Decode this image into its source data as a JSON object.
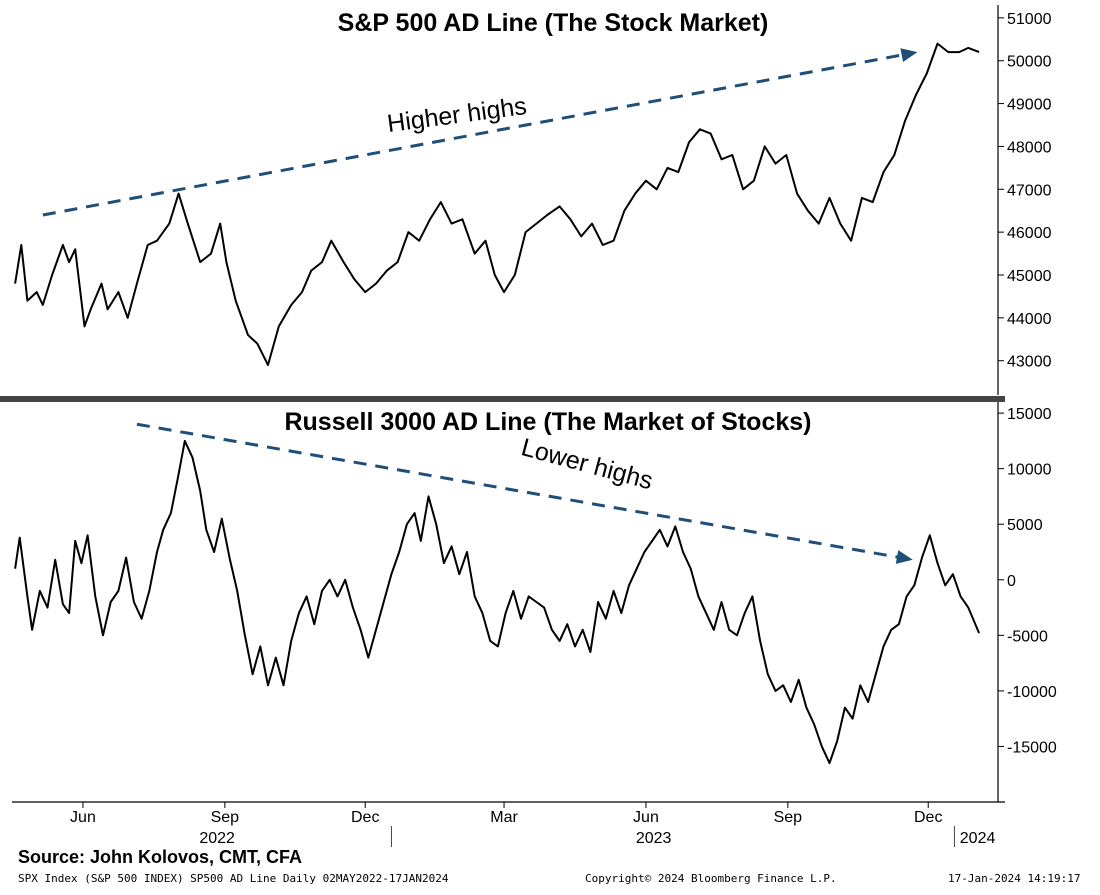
{
  "chart_data": [
    {
      "type": "line",
      "title": "S&P 500 AD Line (The Stock Market)",
      "ylim": [
        42200,
        51300
      ],
      "yticks": [
        43000,
        44000,
        45000,
        46000,
        47000,
        48000,
        49000,
        50000,
        51000
      ],
      "annotation": "Higher highs",
      "trendline": {
        "from": [
          "2022-05-20",
          46400
        ],
        "to": [
          "2023-12-08",
          50200
        ]
      },
      "series": [
        {
          "points": [
            [
              "2022-05-02",
              44800
            ],
            [
              "2022-05-06",
              45700
            ],
            [
              "2022-05-10",
              44400
            ],
            [
              "2022-05-16",
              44600
            ],
            [
              "2022-05-20",
              44300
            ],
            [
              "2022-05-26",
              45000
            ],
            [
              "2022-06-02",
              45700
            ],
            [
              "2022-06-06",
              45300
            ],
            [
              "2022-06-10",
              45600
            ],
            [
              "2022-06-16",
              43800
            ],
            [
              "2022-06-20",
              44200
            ],
            [
              "2022-06-27",
              44800
            ],
            [
              "2022-07-01",
              44200
            ],
            [
              "2022-07-08",
              44600
            ],
            [
              "2022-07-14",
              44000
            ],
            [
              "2022-07-20",
              44800
            ],
            [
              "2022-07-27",
              45700
            ],
            [
              "2022-08-02",
              45800
            ],
            [
              "2022-08-10",
              46200
            ],
            [
              "2022-08-16",
              46900
            ],
            [
              "2022-08-22",
              46200
            ],
            [
              "2022-08-30",
              45300
            ],
            [
              "2022-09-06",
              45500
            ],
            [
              "2022-09-12",
              46200
            ],
            [
              "2022-09-16",
              45300
            ],
            [
              "2022-09-22",
              44400
            ],
            [
              "2022-09-30",
              43600
            ],
            [
              "2022-10-06",
              43400
            ],
            [
              "2022-10-13",
              42900
            ],
            [
              "2022-10-20",
              43800
            ],
            [
              "2022-10-28",
              44300
            ],
            [
              "2022-11-04",
              44600
            ],
            [
              "2022-11-10",
              45100
            ],
            [
              "2022-11-17",
              45300
            ],
            [
              "2022-11-23",
              45800
            ],
            [
              "2022-12-01",
              45300
            ],
            [
              "2022-12-08",
              44900
            ],
            [
              "2022-12-15",
              44600
            ],
            [
              "2022-12-22",
              44800
            ],
            [
              "2022-12-29",
              45100
            ],
            [
              "2023-01-05",
              45300
            ],
            [
              "2023-01-12",
              46000
            ],
            [
              "2023-01-19",
              45800
            ],
            [
              "2023-01-26",
              46300
            ],
            [
              "2023-02-02",
              46700
            ],
            [
              "2023-02-09",
              46200
            ],
            [
              "2023-02-16",
              46300
            ],
            [
              "2023-02-24",
              45500
            ],
            [
              "2023-03-03",
              45800
            ],
            [
              "2023-03-09",
              45000
            ],
            [
              "2023-03-15",
              44600
            ],
            [
              "2023-03-22",
              45000
            ],
            [
              "2023-03-29",
              46000
            ],
            [
              "2023-04-05",
              46200
            ],
            [
              "2023-04-12",
              46400
            ],
            [
              "2023-04-20",
              46600
            ],
            [
              "2023-04-27",
              46300
            ],
            [
              "2023-05-04",
              45900
            ],
            [
              "2023-05-11",
              46200
            ],
            [
              "2023-05-18",
              45700
            ],
            [
              "2023-05-25",
              45800
            ],
            [
              "2023-06-01",
              46500
            ],
            [
              "2023-06-08",
              46900
            ],
            [
              "2023-06-15",
              47200
            ],
            [
              "2023-06-22",
              47000
            ],
            [
              "2023-06-29",
              47500
            ],
            [
              "2023-07-06",
              47400
            ],
            [
              "2023-07-13",
              48100
            ],
            [
              "2023-07-20",
              48400
            ],
            [
              "2023-07-27",
              48300
            ],
            [
              "2023-08-03",
              47700
            ],
            [
              "2023-08-10",
              47800
            ],
            [
              "2023-08-17",
              47000
            ],
            [
              "2023-08-24",
              47200
            ],
            [
              "2023-08-31",
              48000
            ],
            [
              "2023-09-07",
              47600
            ],
            [
              "2023-09-14",
              47800
            ],
            [
              "2023-09-21",
              46900
            ],
            [
              "2023-09-28",
              46500
            ],
            [
              "2023-10-05",
              46200
            ],
            [
              "2023-10-12",
              46800
            ],
            [
              "2023-10-19",
              46200
            ],
            [
              "2023-10-26",
              45800
            ],
            [
              "2023-11-02",
              46800
            ],
            [
              "2023-11-09",
              46700
            ],
            [
              "2023-11-16",
              47400
            ],
            [
              "2023-11-23",
              47800
            ],
            [
              "2023-11-30",
              48600
            ],
            [
              "2023-12-07",
              49200
            ],
            [
              "2023-12-14",
              49700
            ],
            [
              "2023-12-21",
              50400
            ],
            [
              "2023-12-28",
              50200
            ],
            [
              "2024-01-04",
              50200
            ],
            [
              "2024-01-10",
              50300
            ],
            [
              "2024-01-17",
              50200
            ]
          ]
        }
      ]
    },
    {
      "type": "line",
      "title": "Russell 3000 AD Line (The Market of Stocks)",
      "ylim": [
        -20000,
        16000
      ],
      "yticks": [
        -15000,
        -10000,
        -5000,
        0,
        5000,
        10000,
        15000
      ],
      "xtick_labels": [
        "Jun",
        "Sep",
        "Dec",
        "Mar",
        "Jun",
        "Sep",
        "Dec"
      ],
      "xtick_dates": [
        "2022-06-15",
        "2022-09-15",
        "2022-12-15",
        "2023-03-15",
        "2023-06-15",
        "2023-09-15",
        "2023-12-15"
      ],
      "year_labels": [
        {
          "label": "2022",
          "date": "2022-09-10"
        },
        {
          "label": "2023",
          "date": "2023-06-20"
        },
        {
          "label": "2024",
          "date": "2024-01-16"
        }
      ],
      "year_separators": [
        "2023-01-01",
        "2024-01-01"
      ],
      "annotation": "Lower highs",
      "trendline": {
        "from": [
          "2022-07-20",
          14000
        ],
        "to": [
          "2023-12-05",
          1800
        ]
      },
      "series": [
        {
          "points": [
            [
              "2022-05-02",
              1000
            ],
            [
              "2022-05-05",
              3800
            ],
            [
              "2022-05-10",
              -1500
            ],
            [
              "2022-05-13",
              -4500
            ],
            [
              "2022-05-18",
              -1000
            ],
            [
              "2022-05-23",
              -2500
            ],
            [
              "2022-05-28",
              1800
            ],
            [
              "2022-06-02",
              -2200
            ],
            [
              "2022-06-06",
              -3000
            ],
            [
              "2022-06-10",
              3500
            ],
            [
              "2022-06-14",
              1500
            ],
            [
              "2022-06-18",
              4000
            ],
            [
              "2022-06-23",
              -1500
            ],
            [
              "2022-06-28",
              -5000
            ],
            [
              "2022-07-03",
              -2000
            ],
            [
              "2022-07-08",
              -1000
            ],
            [
              "2022-07-13",
              2000
            ],
            [
              "2022-07-18",
              -2000
            ],
            [
              "2022-07-23",
              -3500
            ],
            [
              "2022-07-28",
              -1000
            ],
            [
              "2022-08-02",
              2500
            ],
            [
              "2022-08-06",
              4500
            ],
            [
              "2022-08-11",
              6000
            ],
            [
              "2022-08-16",
              9500
            ],
            [
              "2022-08-20",
              12500
            ],
            [
              "2022-08-25",
              11000
            ],
            [
              "2022-08-30",
              8000
            ],
            [
              "2022-09-03",
              4500
            ],
            [
              "2022-09-08",
              2500
            ],
            [
              "2022-09-13",
              5500
            ],
            [
              "2022-09-18",
              2000
            ],
            [
              "2022-09-23",
              -1000
            ],
            [
              "2022-09-28",
              -5000
            ],
            [
              "2022-10-03",
              -8500
            ],
            [
              "2022-10-08",
              -6000
            ],
            [
              "2022-10-13",
              -9500
            ],
            [
              "2022-10-18",
              -7000
            ],
            [
              "2022-10-23",
              -9500
            ],
            [
              "2022-10-28",
              -5500
            ],
            [
              "2022-11-02",
              -3000
            ],
            [
              "2022-11-07",
              -1500
            ],
            [
              "2022-11-12",
              -4000
            ],
            [
              "2022-11-17",
              -1000
            ],
            [
              "2022-11-22",
              0
            ],
            [
              "2022-11-27",
              -1500
            ],
            [
              "2022-12-02",
              0
            ],
            [
              "2022-12-07",
              -2500
            ],
            [
              "2022-12-12",
              -4500
            ],
            [
              "2022-12-17",
              -7000
            ],
            [
              "2022-12-22",
              -4500
            ],
            [
              "2022-12-27",
              -2000
            ],
            [
              "2023-01-01",
              500
            ],
            [
              "2023-01-06",
              2500
            ],
            [
              "2023-01-11",
              5000
            ],
            [
              "2023-01-16",
              6000
            ],
            [
              "2023-01-20",
              3500
            ],
            [
              "2023-01-25",
              7500
            ],
            [
              "2023-01-30",
              5000
            ],
            [
              "2023-02-04",
              1500
            ],
            [
              "2023-02-09",
              3000
            ],
            [
              "2023-02-14",
              500
            ],
            [
              "2023-02-19",
              2500
            ],
            [
              "2023-02-24",
              -1500
            ],
            [
              "2023-03-01",
              -3000
            ],
            [
              "2023-03-06",
              -5500
            ],
            [
              "2023-03-11",
              -6000
            ],
            [
              "2023-03-16",
              -3000
            ],
            [
              "2023-03-21",
              -1000
            ],
            [
              "2023-03-26",
              -3500
            ],
            [
              "2023-03-31",
              -1500
            ],
            [
              "2023-04-05",
              -2000
            ],
            [
              "2023-04-10",
              -2500
            ],
            [
              "2023-04-15",
              -4500
            ],
            [
              "2023-04-20",
              -5500
            ],
            [
              "2023-04-25",
              -4000
            ],
            [
              "2023-04-30",
              -6000
            ],
            [
              "2023-05-05",
              -4500
            ],
            [
              "2023-05-10",
              -6500
            ],
            [
              "2023-05-15",
              -2000
            ],
            [
              "2023-05-20",
              -3500
            ],
            [
              "2023-05-25",
              -1000
            ],
            [
              "2023-05-30",
              -3000
            ],
            [
              "2023-06-04",
              -500
            ],
            [
              "2023-06-09",
              1000
            ],
            [
              "2023-06-14",
              2500
            ],
            [
              "2023-06-19",
              3500
            ],
            [
              "2023-06-24",
              4500
            ],
            [
              "2023-06-29",
              3000
            ],
            [
              "2023-07-04",
              4800
            ],
            [
              "2023-07-09",
              2500
            ],
            [
              "2023-07-14",
              1000
            ],
            [
              "2023-07-19",
              -1500
            ],
            [
              "2023-07-24",
              -3000
            ],
            [
              "2023-07-29",
              -4500
            ],
            [
              "2023-08-03",
              -2000
            ],
            [
              "2023-08-08",
              -4500
            ],
            [
              "2023-08-13",
              -5000
            ],
            [
              "2023-08-18",
              -3000
            ],
            [
              "2023-08-23",
              -1500
            ],
            [
              "2023-08-28",
              -5500
            ],
            [
              "2023-09-02",
              -8500
            ],
            [
              "2023-09-07",
              -10000
            ],
            [
              "2023-09-12",
              -9500
            ],
            [
              "2023-09-17",
              -11000
            ],
            [
              "2023-09-22",
              -9000
            ],
            [
              "2023-09-27",
              -11500
            ],
            [
              "2023-10-02",
              -13000
            ],
            [
              "2023-10-07",
              -15000
            ],
            [
              "2023-10-12",
              -16500
            ],
            [
              "2023-10-17",
              -14500
            ],
            [
              "2023-10-22",
              -11500
            ],
            [
              "2023-10-27",
              -12500
            ],
            [
              "2023-11-01",
              -9500
            ],
            [
              "2023-11-06",
              -11000
            ],
            [
              "2023-11-11",
              -8500
            ],
            [
              "2023-11-16",
              -6000
            ],
            [
              "2023-11-21",
              -4500
            ],
            [
              "2023-11-26",
              -4000
            ],
            [
              "2023-12-01",
              -1500
            ],
            [
              "2023-12-06",
              -500
            ],
            [
              "2023-12-11",
              2000
            ],
            [
              "2023-12-16",
              4000
            ],
            [
              "2023-12-21",
              1500
            ],
            [
              "2023-12-26",
              -500
            ],
            [
              "2023-12-31",
              500
            ],
            [
              "2024-01-05",
              -1500
            ],
            [
              "2024-01-10",
              -2500
            ],
            [
              "2024-01-17",
              -4800
            ]
          ]
        }
      ]
    }
  ],
  "footer": {
    "source": "Source: John Kolovos, CMT, CFA",
    "ticker_info": "SPX Index (S&P 500 INDEX) SP500 AD Line  Daily 02MAY2022-17JAN2024",
    "copyright": "Copyright© 2024 Bloomberg Finance L.P.",
    "timestamp": "17-Jan-2024 14:19:17"
  },
  "colors": {
    "line": "#000000",
    "trendline": "#1f4e79",
    "separator": "#444444"
  }
}
